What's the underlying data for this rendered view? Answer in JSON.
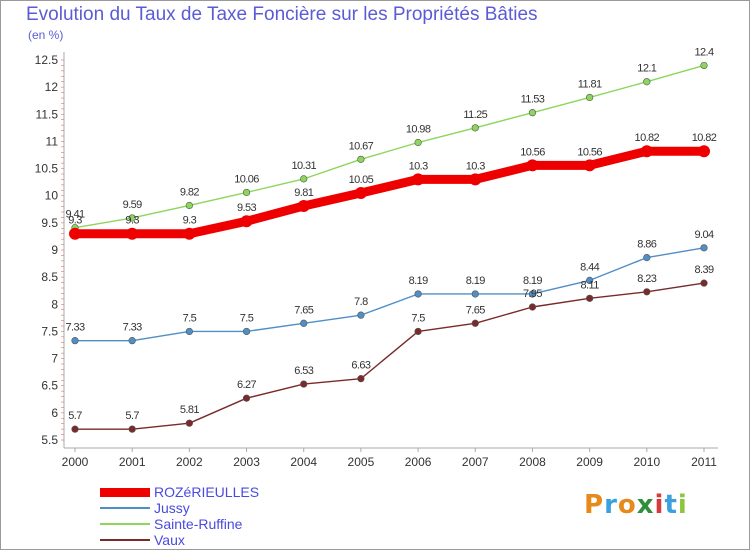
{
  "chart_data": {
    "type": "line",
    "title": "Evolution du Taux de Taxe Foncière sur les Propriétés Bâties",
    "unit_label": "(en %)",
    "x": [
      "2000",
      "2001",
      "2002",
      "2003",
      "2004",
      "2005",
      "2006",
      "2007",
      "2008",
      "2009",
      "2010",
      "2011"
    ],
    "ylim": [
      5.5,
      12.5
    ],
    "yticks": [
      "5.5",
      "6",
      "6.5",
      "7",
      "7.5",
      "8",
      "8.5",
      "9",
      "9.5",
      "10",
      "10.5",
      "11",
      "11.5",
      "12",
      "12.5"
    ],
    "grid": false,
    "legend_position": "bottom-left",
    "series": [
      {
        "name": "ROZéRIEULLES",
        "color": "#ee0000",
        "values": [
          9.3,
          9.3,
          9.3,
          9.53,
          9.81,
          10.05,
          10.3,
          10.3,
          10.56,
          10.56,
          10.82,
          10.82
        ],
        "labels": [
          "9.3",
          "9.3",
          "9.3",
          "9.53",
          "9.81",
          "10.05",
          "10.3",
          "10.3",
          "10.56",
          "10.56",
          "10.82",
          "10.82"
        ]
      },
      {
        "name": "Jussy",
        "color": "#4f8fc6",
        "values": [
          7.33,
          7.33,
          7.5,
          7.5,
          7.65,
          7.8,
          8.19,
          8.19,
          8.19,
          8.44,
          8.86,
          9.04
        ],
        "labels": [
          "7.33",
          "7.33",
          "7.5",
          "7.5",
          "7.65",
          "7.8",
          "8.19",
          "8.19",
          "8.19",
          "8.44",
          "8.86",
          "9.04"
        ]
      },
      {
        "name": "Sainte-Ruffine",
        "color": "#8cd65c",
        "values": [
          9.41,
          9.59,
          9.82,
          10.06,
          10.31,
          10.67,
          10.98,
          11.25,
          11.53,
          11.81,
          12.1,
          12.4
        ],
        "labels": [
          "9.41",
          "9.59",
          "9.82",
          "10.06",
          "10.31",
          "10.67",
          "10.98",
          "11.25",
          "11.53",
          "11.81",
          "12.1",
          "12.4"
        ]
      },
      {
        "name": "Vaux",
        "color": "#7a2a2a",
        "values": [
          5.7,
          5.7,
          5.81,
          6.27,
          6.53,
          6.63,
          7.5,
          7.65,
          7.95,
          8.11,
          8.23,
          8.39
        ],
        "labels": [
          "5.7",
          "5.7",
          "5.81",
          "6.27",
          "6.53",
          "6.63",
          "7.5",
          "7.65",
          "7.95",
          "8.11",
          "8.23",
          "8.39"
        ]
      }
    ]
  },
  "brand": {
    "letters": [
      "P",
      "r",
      "o",
      "x",
      "i",
      "t",
      "i"
    ],
    "colors": [
      "#e68a1c",
      "#3aa0e0",
      "#e68a1c",
      "#2f8f3a",
      "#d63a3a",
      "#3aa0e0",
      "#8cc63f"
    ]
  }
}
